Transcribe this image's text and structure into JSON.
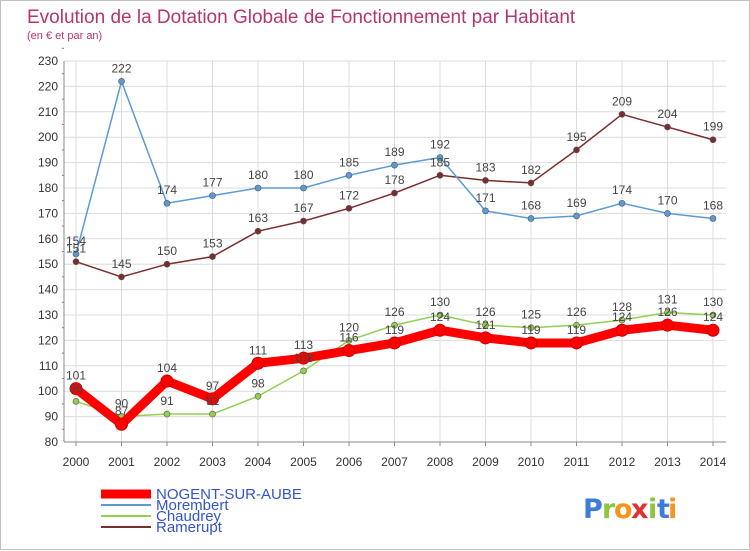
{
  "chart_data": {
    "type": "line",
    "title": "Evolution de la Dotation Globale de Fonctionnement par Habitant",
    "subtitle": "(en € et par an)",
    "xlabel": "",
    "ylabel": "",
    "ylim": [
      80,
      230
    ],
    "yticks": [
      80,
      90,
      100,
      110,
      120,
      130,
      140,
      150,
      160,
      170,
      180,
      190,
      200,
      210,
      220,
      230
    ],
    "categories": [
      "2000",
      "2001",
      "2002",
      "2003",
      "2004",
      "2005",
      "2006",
      "2007",
      "2008",
      "2009",
      "2010",
      "2011",
      "2012",
      "2013",
      "2014"
    ],
    "grid": true,
    "legend_position": "bottom-left",
    "series": [
      {
        "name": "NOGENT-SUR-AUBE",
        "color": "#ff0000",
        "values": [
          101,
          87,
          104,
          97,
          111,
          113,
          116,
          119,
          124,
          121,
          119,
          119,
          124,
          126,
          124
        ]
      },
      {
        "name": "Morembert",
        "color": "#5b9bd5",
        "values": [
          154,
          222,
          174,
          177,
          180,
          180,
          185,
          189,
          192,
          171,
          168,
          169,
          174,
          170,
          168
        ]
      },
      {
        "name": "Chaudrey",
        "color": "#92d050",
        "values": [
          96,
          90,
          91,
          91,
          98,
          108,
          120,
          126,
          130,
          126,
          125,
          126,
          128,
          131,
          130
        ]
      },
      {
        "name": "Ramerupt",
        "color": "#7b2c2c",
        "values": [
          151,
          145,
          150,
          153,
          163,
          167,
          172,
          178,
          185,
          183,
          182,
          195,
          209,
          204,
          199
        ]
      }
    ],
    "data_labels": {
      "NOGENT-SUR-AUBE": [
        "101",
        "87",
        "104",
        "97",
        "111",
        "113",
        "116",
        "119",
        "124",
        "121",
        "119",
        "119",
        "124",
        "126",
        "124"
      ],
      "Morembert": [
        "154",
        "222",
        "174",
        "177",
        "180",
        "180",
        "185",
        "189",
        "192",
        "171",
        "168",
        "169",
        "174",
        "170",
        "168"
      ],
      "Chaudrey": [
        "96",
        "90",
        "91",
        "91",
        "98",
        "108",
        "120",
        "126",
        "130",
        "126",
        "125",
        "126",
        "128",
        "131",
        "130"
      ],
      "Ramerupt": [
        "151",
        "145",
        "150",
        "153",
        "163",
        "167",
        "172",
        "178",
        "185",
        "183",
        "182",
        "195",
        "209",
        "204",
        "199"
      ]
    }
  },
  "logo": {
    "letters": [
      "P",
      "r",
      "o",
      "x",
      "i",
      "t",
      "i"
    ],
    "colors": [
      "#3d7dd8",
      "#8cc63e",
      "#f7941d",
      "#e03030",
      "#8cc63e",
      "#3d7dd8",
      "#f7941d"
    ]
  }
}
